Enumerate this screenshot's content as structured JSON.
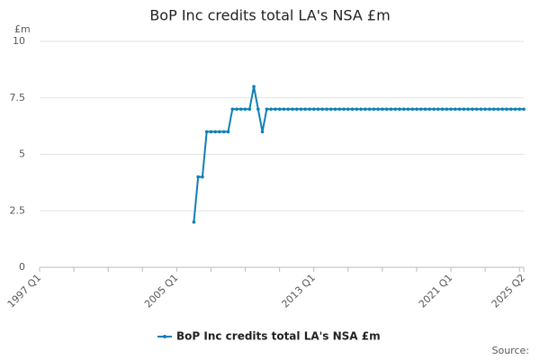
{
  "chart_data": {
    "type": "line",
    "title": "BoP Inc credits total LA's NSA £m",
    "y_unit": "£m",
    "source": "Source:",
    "categories": [
      "1997 Q1",
      null,
      null,
      null,
      null,
      null,
      null,
      null,
      null,
      null,
      null,
      null,
      null,
      null,
      null,
      null,
      null,
      null,
      null,
      null,
      null,
      null,
      null,
      null,
      null,
      null,
      null,
      null,
      null,
      null,
      null,
      null,
      "2005 Q1",
      null,
      null,
      null,
      null,
      null,
      null,
      null,
      null,
      null,
      null,
      null,
      null,
      null,
      null,
      null,
      null,
      null,
      null,
      null,
      null,
      null,
      null,
      null,
      null,
      null,
      null,
      null,
      null,
      null,
      null,
      null,
      "2013 Q1",
      null,
      null,
      null,
      null,
      null,
      null,
      null,
      null,
      null,
      null,
      null,
      null,
      null,
      null,
      null,
      null,
      null,
      null,
      null,
      null,
      null,
      null,
      null,
      null,
      null,
      null,
      null,
      null,
      null,
      null,
      null,
      "2021 Q1",
      null,
      null,
      null,
      null,
      null,
      null,
      null,
      null,
      null,
      null,
      null,
      null,
      null,
      null,
      null,
      null,
      "2025 Q2"
    ],
    "series": [
      {
        "name": "BoP Inc credits total LA's NSA £m",
        "color": "#0f7fb8",
        "values": [
          null,
          null,
          null,
          null,
          null,
          null,
          null,
          null,
          null,
          null,
          null,
          null,
          null,
          null,
          null,
          null,
          null,
          null,
          null,
          null,
          null,
          null,
          null,
          null,
          null,
          null,
          null,
          null,
          null,
          null,
          null,
          null,
          null,
          null,
          null,
          null,
          2,
          4,
          4,
          6,
          6,
          6,
          6,
          6,
          6,
          7,
          7,
          7,
          7,
          7,
          8,
          7,
          6,
          7,
          7,
          7,
          7,
          7,
          7,
          7,
          7,
          7,
          7,
          7,
          7,
          7,
          7,
          7,
          7,
          7,
          7,
          7,
          7,
          7,
          7,
          7,
          7,
          7,
          7,
          7,
          7,
          7,
          7,
          7,
          7,
          7,
          7,
          7,
          7,
          7,
          7,
          7,
          7,
          7,
          7,
          7,
          7,
          7,
          7,
          7,
          7,
          7,
          7,
          7,
          7,
          7,
          7,
          7,
          7,
          7,
          7,
          7,
          7,
          7
        ]
      }
    ],
    "ylim": [
      0,
      10
    ],
    "yticks": [
      0,
      2.5,
      5,
      7.5,
      10
    ],
    "grid": true,
    "legend": "bottom"
  }
}
